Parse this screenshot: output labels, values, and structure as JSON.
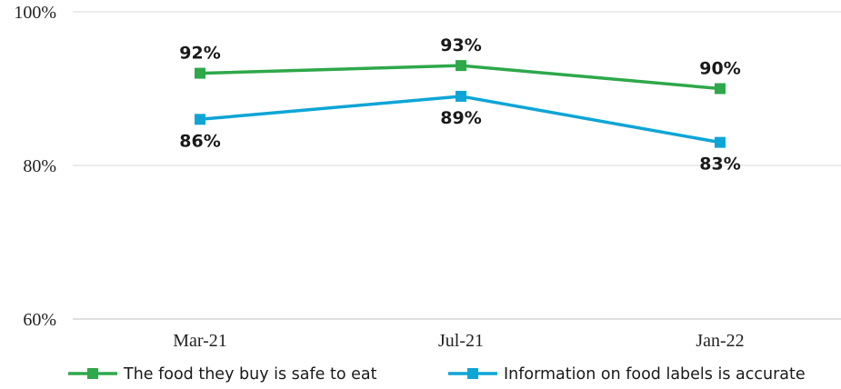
{
  "chart_data": {
    "type": "line",
    "title": "",
    "xlabel": "",
    "ylabel": "",
    "categories": [
      "Mar-21",
      "Jul-21",
      "Jan-22"
    ],
    "ylim": [
      60,
      100
    ],
    "yticks": [
      {
        "value": 100,
        "label": "100%"
      },
      {
        "value": 80,
        "label": "80%"
      },
      {
        "value": 60,
        "label": "60%"
      }
    ],
    "grid": true,
    "legend_position": "bottom",
    "series": [
      {
        "name": "The food they buy is safe to eat",
        "color": "#2ea84a",
        "marker": "square",
        "label_position": "above",
        "values": [
          92,
          93,
          90
        ],
        "labels": [
          "92%",
          "93%",
          "90%"
        ]
      },
      {
        "name": "Information on food labels is accurate",
        "color": "#0ea5d6",
        "marker": "square",
        "label_position": "below",
        "values": [
          86,
          89,
          83
        ],
        "labels": [
          "86%",
          "89%",
          "83%"
        ]
      }
    ]
  }
}
